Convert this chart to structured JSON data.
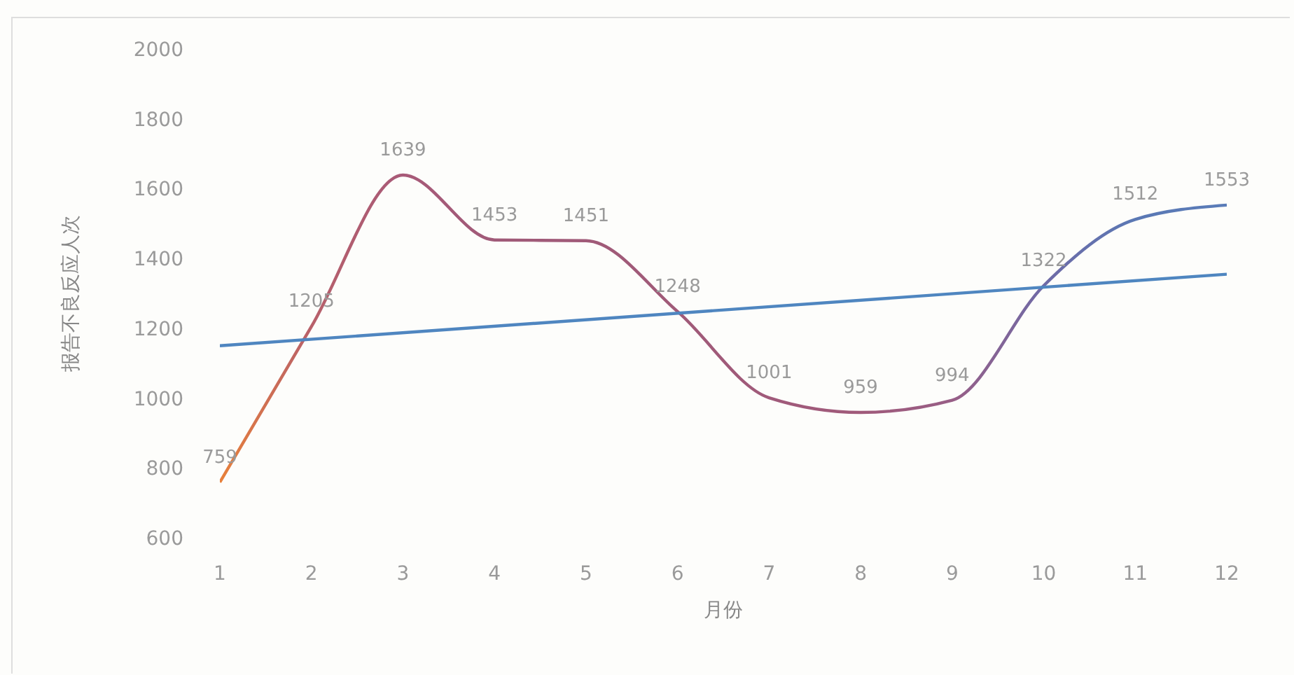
{
  "chart_data": {
    "type": "line",
    "xlabel": "月份",
    "ylabel": "报告不良反应人次",
    "x": [
      1,
      2,
      3,
      4,
      5,
      6,
      7,
      8,
      9,
      10,
      11,
      12
    ],
    "xlim": [
      1,
      12
    ],
    "xticks": [
      1,
      2,
      3,
      4,
      5,
      6,
      7,
      8,
      9,
      10,
      11,
      12
    ],
    "ylim": [
      600,
      2000
    ],
    "yticks": [
      600,
      800,
      1000,
      1200,
      1400,
      1600,
      1800,
      2000
    ],
    "series": [
      {
        "values": [
          759,
          1205,
          1639,
          1453,
          1451,
          1248,
          1001,
          959,
          994,
          1322,
          1512,
          1553
        ],
        "value_labels": [
          "759",
          "1205",
          "1639",
          "1453",
          "1451",
          "1248",
          "1001",
          "959",
          "994",
          "1322",
          "1512",
          "1553"
        ],
        "colors": [
          "#e8803a",
          "#b8606a",
          "#a85a78",
          "#a05a78",
          "#a05a78",
          "#a05a78",
          "#a05a7a",
          "#a05a7a",
          "#985e86",
          "#6f6aa6",
          "#5a78b4",
          "#5a7cb8"
        ]
      },
      {
        "type": "line",
        "x": [
          1,
          12
        ],
        "values": [
          1150,
          1355
        ],
        "color": "#4f86c0"
      }
    ]
  }
}
